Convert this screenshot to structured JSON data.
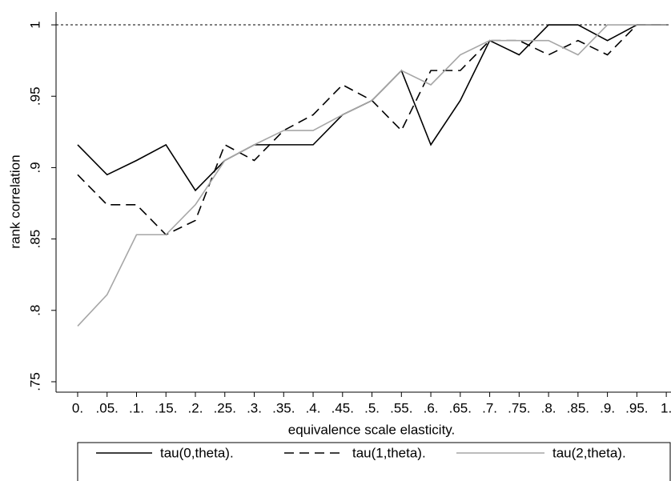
{
  "chart_data": {
    "type": "line",
    "x_label": "equivalence scale elasticity.",
    "y_label": "rank correlation",
    "x": [
      0,
      0.05,
      0.1,
      0.15,
      0.2,
      0.25,
      0.3,
      0.35,
      0.4,
      0.45,
      0.5,
      0.55,
      0.6,
      0.65,
      0.7,
      0.75,
      0.8,
      0.85,
      0.9,
      0.95,
      1
    ],
    "series": [
      {
        "name": "tau(0,theta).",
        "color": "#000000",
        "dash": "solid",
        "values": [
          0.916,
          0.895,
          0.905,
          0.916,
          0.884,
          0.905,
          0.916,
          0.916,
          0.916,
          0.937,
          0.947,
          0.968,
          0.916,
          0.947,
          0.989,
          0.979,
          1,
          1,
          0.989,
          1,
          1
        ]
      },
      {
        "name": "tau(1,theta).",
        "color": "#000000",
        "dash": "dashed",
        "values": [
          0.895,
          0.874,
          0.874,
          0.853,
          0.863,
          0.916,
          0.905,
          0.926,
          0.937,
          0.958,
          0.947,
          0.926,
          0.968,
          0.968,
          0.989,
          0.989,
          0.979,
          0.989,
          0.979,
          1,
          1
        ]
      },
      {
        "name": "tau(2,theta).",
        "color": "#a6a6a6",
        "dash": "solid",
        "values": [
          0.789,
          0.811,
          0.853,
          0.853,
          0.874,
          0.905,
          0.916,
          0.926,
          0.926,
          0.937,
          0.947,
          0.968,
          0.958,
          0.979,
          0.989,
          0.989,
          0.989,
          0.979,
          1,
          1,
          1
        ]
      }
    ],
    "reference_line": 1,
    "xlim": [
      -0.0367,
      1.008
    ],
    "ylim": [
      0.7427,
      1.009
    ],
    "xticks": [
      {
        "value": 0,
        "label": "0."
      },
      {
        "value": 0.05,
        "label": ".05."
      },
      {
        "value": 0.1,
        "label": ".1."
      },
      {
        "value": 0.15,
        "label": ".15."
      },
      {
        "value": 0.2,
        "label": ".2."
      },
      {
        "value": 0.25,
        "label": ".25."
      },
      {
        "value": 0.3,
        "label": ".3."
      },
      {
        "value": 0.35,
        "label": ".35."
      },
      {
        "value": 0.4,
        "label": ".4."
      },
      {
        "value": 0.45,
        "label": ".45."
      },
      {
        "value": 0.5,
        "label": ".5."
      },
      {
        "value": 0.55,
        "label": ".55."
      },
      {
        "value": 0.6,
        "label": ".6."
      },
      {
        "value": 0.65,
        "label": ".65."
      },
      {
        "value": 0.7,
        "label": ".7."
      },
      {
        "value": 0.75,
        "label": ".75."
      },
      {
        "value": 0.8,
        "label": ".8."
      },
      {
        "value": 0.85,
        "label": ".85."
      },
      {
        "value": 0.9,
        "label": ".9."
      },
      {
        "value": 0.95,
        "label": ".95."
      },
      {
        "value": 1,
        "label": "1."
      }
    ],
    "yticks": [
      {
        "value": 0.75,
        "label": ".75"
      },
      {
        "value": 0.8,
        "label": ".8"
      },
      {
        "value": 0.85,
        "label": ".85"
      },
      {
        "value": 0.9,
        "label": ".9"
      },
      {
        "value": 0.95,
        "label": ".95"
      },
      1
    ]
  }
}
